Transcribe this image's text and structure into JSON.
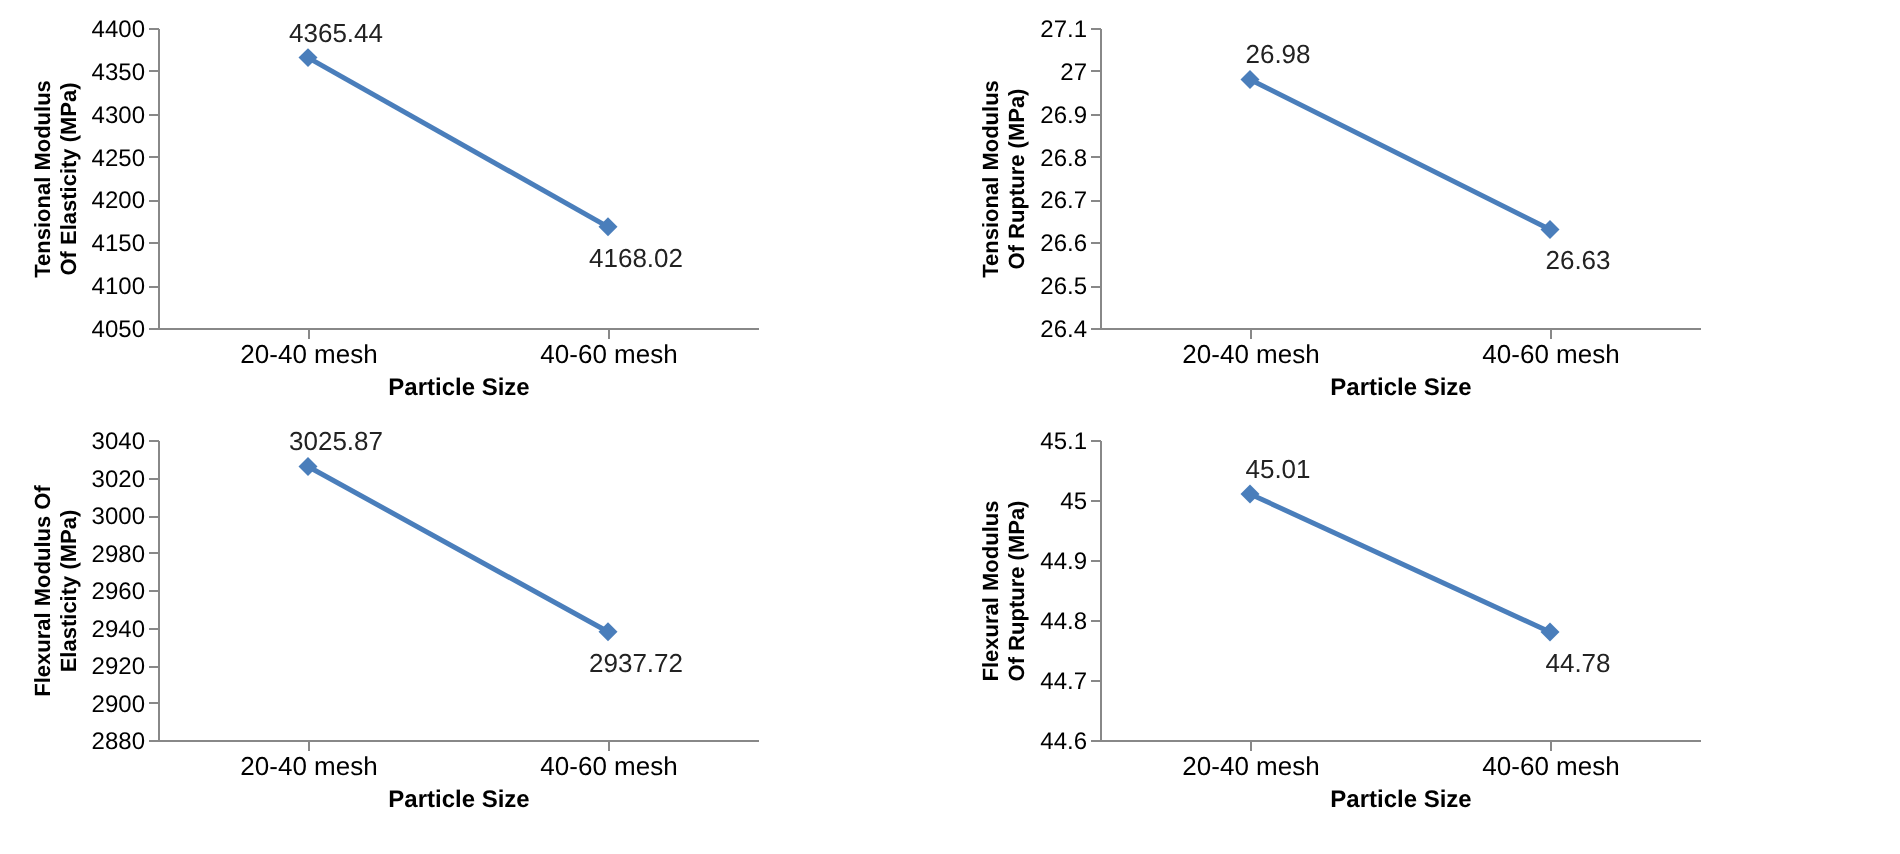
{
  "chart_data": [
    {
      "type": "line",
      "categories": [
        "20-40 mesh",
        "40-60 mesh"
      ],
      "xlabel": "Particle Size",
      "ylabel": "Tensional Modulus Of Elasticity (MPa)",
      "series": [
        {
          "color": "#4a7ebb",
          "values": [
            4365.44,
            4168.02
          ]
        }
      ],
      "ylim": [
        4050,
        4400
      ],
      "yticks": [
        4050,
        4100,
        4150,
        4200,
        4250,
        4300,
        4350,
        4400
      ],
      "data_labels": true,
      "marker": "diamond",
      "grid": false,
      "legend": false
    },
    {
      "type": "line",
      "categories": [
        "20-40 mesh",
        "40-60 mesh"
      ],
      "xlabel": "Particle Size",
      "ylabel": "Tensional Modulus Of Rupture (MPa)",
      "series": [
        {
          "color": "#4a7ebb",
          "values": [
            26.98,
            26.63
          ]
        }
      ],
      "ylim": [
        26.4,
        27.1
      ],
      "yticks": [
        26.4,
        26.5,
        26.6,
        26.7,
        26.8,
        26.9,
        27,
        27.1
      ],
      "data_labels": true,
      "marker": "diamond",
      "grid": false,
      "legend": false
    },
    {
      "type": "line",
      "categories": [
        "20-40 mesh",
        "40-60 mesh"
      ],
      "xlabel": "Particle Size",
      "ylabel": "Flexural Modulus Of Elasticity (MPa)",
      "series": [
        {
          "color": "#4a7ebb",
          "values": [
            3025.87,
            2937.72
          ]
        }
      ],
      "ylim": [
        2880,
        3040
      ],
      "yticks": [
        2880,
        2900,
        2920,
        2940,
        2960,
        2980,
        3000,
        3020,
        3040
      ],
      "data_labels": true,
      "marker": "diamond",
      "grid": false,
      "legend": false
    },
    {
      "type": "line",
      "categories": [
        "20-40 mesh",
        "40-60 mesh"
      ],
      "xlabel": "Particle Size",
      "ylabel": "Flexural Modulus Of Rupture (MPa)",
      "series": [
        {
          "color": "#4a7ebb",
          "values": [
            45.01,
            44.78
          ]
        }
      ],
      "ylim": [
        44.6,
        45.1
      ],
      "yticks": [
        44.6,
        44.7,
        44.8,
        44.9,
        45,
        45.1
      ],
      "data_labels": true,
      "marker": "diamond",
      "grid": false,
      "legend": false
    }
  ]
}
